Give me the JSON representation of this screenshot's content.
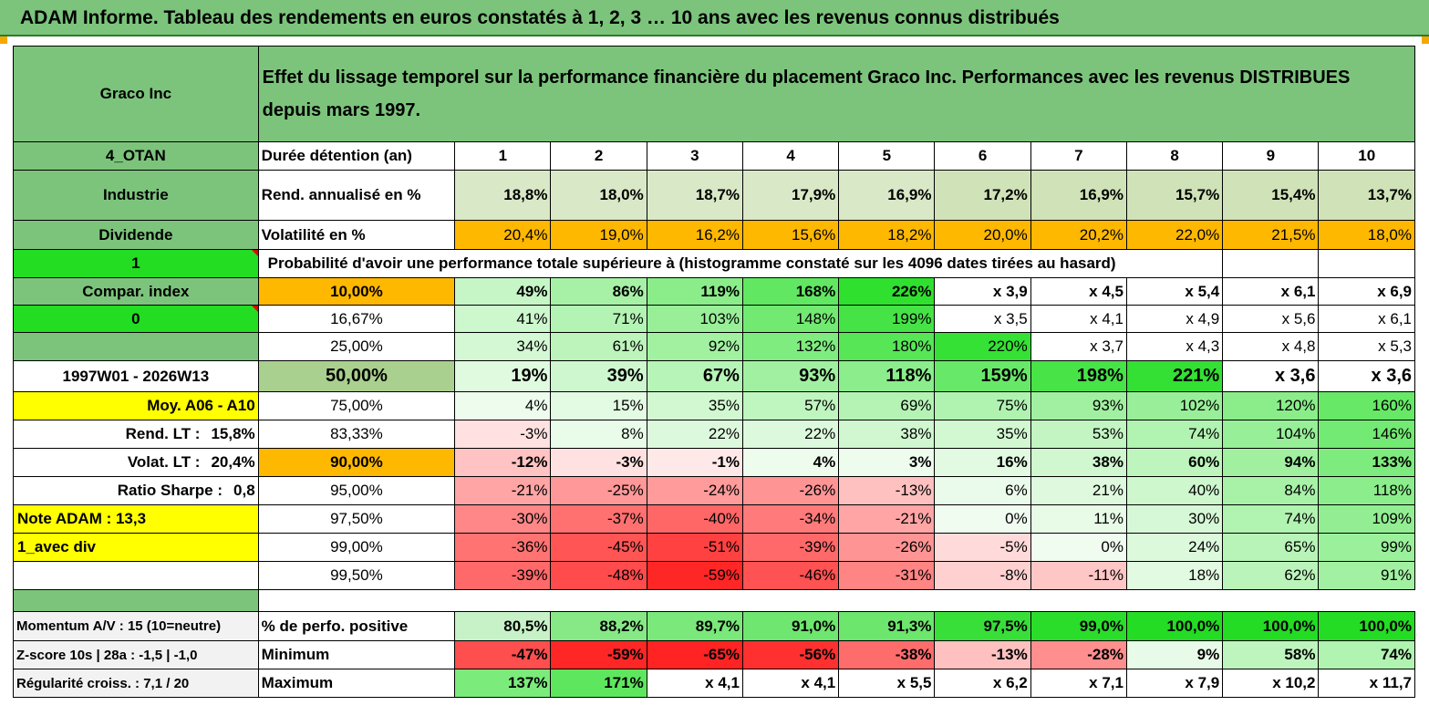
{
  "title": "ADAM Informe. Tableau des rendements en euros constatés à 1, 2, 3 … 10 ans avec les revenus connus distribués",
  "company": "Graco Inc",
  "description": "Effet du lissage temporel sur la performance financière du placement Graco Inc. Performances avec les revenus DISTRIBUES depuis mars 1997.",
  "sidebar": {
    "code": "4_OTAN",
    "sector": "Industrie",
    "dividend": "Dividende",
    "one": "1",
    "compar_index": "Compar. index",
    "zero": "0",
    "period": "1997W01 - 2026W13",
    "moy": "Moy. A06 - A10",
    "rend_lt_label": "Rend. LT :",
    "rend_lt_value": "15,8%",
    "volat_lt_label": "Volat. LT :",
    "volat_lt_value": "20,4%",
    "sharpe_label": "Ratio Sharpe :",
    "sharpe_value": "0,8",
    "note": "Note ADAM : 13,3",
    "avec_div": "1_avec div",
    "momentum": "Momentum A/V : 15 (10=neutre)",
    "zscore": "Z-score 10s | 28a : -1,5 | -1,0",
    "regularite": "Régularité croiss. : 7,1 / 20"
  },
  "labels": {
    "duree": "Durée détention (an)",
    "rend": "Rend. annualisé en %",
    "volat": "Volatilité en %",
    "proba": "Probabilité d'avoir une performance totale supérieure à (histogramme constaté sur les 4096 dates tirées au hasard)",
    "perf_pos": "% de perfo. positive",
    "minimum": "Minimum",
    "maximum": "Maximum"
  },
  "years": [
    "1",
    "2",
    "3",
    "4",
    "5",
    "6",
    "7",
    "8",
    "9",
    "10"
  ],
  "rend": [
    "18,8%",
    "18,0%",
    "18,7%",
    "17,9%",
    "16,9%",
    "17,2%",
    "16,9%",
    "15,7%",
    "15,4%",
    "13,7%"
  ],
  "volat": [
    "20,4%",
    "19,0%",
    "16,2%",
    "15,6%",
    "18,2%",
    "20,0%",
    "20,2%",
    "22,0%",
    "21,5%",
    "18,0%"
  ],
  "quantiles": [
    {
      "label": "10,00%",
      "values": [
        "49%",
        "86%",
        "119%",
        "168%",
        "226%",
        "x 3,9",
        "x 4,5",
        "x 5,4",
        "x 6,1",
        "x 6,9"
      ]
    },
    {
      "label": "16,67%",
      "values": [
        "41%",
        "71%",
        "103%",
        "148%",
        "199%",
        "x 3,5",
        "x 4,1",
        "x 4,9",
        "x 5,6",
        "x 6,1"
      ]
    },
    {
      "label": "25,00%",
      "values": [
        "34%",
        "61%",
        "92%",
        "132%",
        "180%",
        "220%",
        "x 3,7",
        "x 4,3",
        "x 4,8",
        "x 5,3"
      ]
    },
    {
      "label": "50,00%",
      "values": [
        "19%",
        "39%",
        "67%",
        "93%",
        "118%",
        "159%",
        "198%",
        "221%",
        "x 3,6",
        "x 3,6"
      ]
    },
    {
      "label": "75,00%",
      "values": [
        "4%",
        "15%",
        "35%",
        "57%",
        "69%",
        "75%",
        "93%",
        "102%",
        "120%",
        "160%"
      ]
    },
    {
      "label": "83,33%",
      "values": [
        "-3%",
        "8%",
        "22%",
        "22%",
        "38%",
        "35%",
        "53%",
        "74%",
        "104%",
        "146%"
      ]
    },
    {
      "label": "90,00%",
      "values": [
        "-12%",
        "-3%",
        "-1%",
        "4%",
        "3%",
        "16%",
        "38%",
        "60%",
        "94%",
        "133%"
      ]
    },
    {
      "label": "95,00%",
      "values": [
        "-21%",
        "-25%",
        "-24%",
        "-26%",
        "-13%",
        "6%",
        "21%",
        "40%",
        "84%",
        "118%"
      ]
    },
    {
      "label": "97,50%",
      "values": [
        "-30%",
        "-37%",
        "-40%",
        "-34%",
        "-21%",
        "0%",
        "11%",
        "30%",
        "74%",
        "109%"
      ]
    },
    {
      "label": "99,00%",
      "values": [
        "-36%",
        "-45%",
        "-51%",
        "-39%",
        "-26%",
        "-5%",
        "0%",
        "24%",
        "65%",
        "99%"
      ]
    },
    {
      "label": "99,50%",
      "values": [
        "-39%",
        "-48%",
        "-59%",
        "-46%",
        "-31%",
        "-8%",
        "-11%",
        "18%",
        "62%",
        "91%"
      ]
    }
  ],
  "perf_pos": [
    "80,5%",
    "88,2%",
    "89,7%",
    "91,0%",
    "91,3%",
    "97,5%",
    "99,0%",
    "100,0%",
    "100,0%",
    "100,0%"
  ],
  "minimum": [
    "-47%",
    "-59%",
    "-65%",
    "-56%",
    "-38%",
    "-13%",
    "-28%",
    "9%",
    "58%",
    "74%"
  ],
  "maximum": [
    "137%",
    "171%",
    "x 4,1",
    "x 4,1",
    "x 5,5",
    "x 6,2",
    "x 7,1",
    "x 7,9",
    "x 10,2",
    "x 11,7"
  ],
  "colors": {
    "header_green": "#7cc47c",
    "bright_green": "#22dd22",
    "orange": "#ffb800",
    "yellow": "#ffff00",
    "red_text": "#e02020"
  }
}
